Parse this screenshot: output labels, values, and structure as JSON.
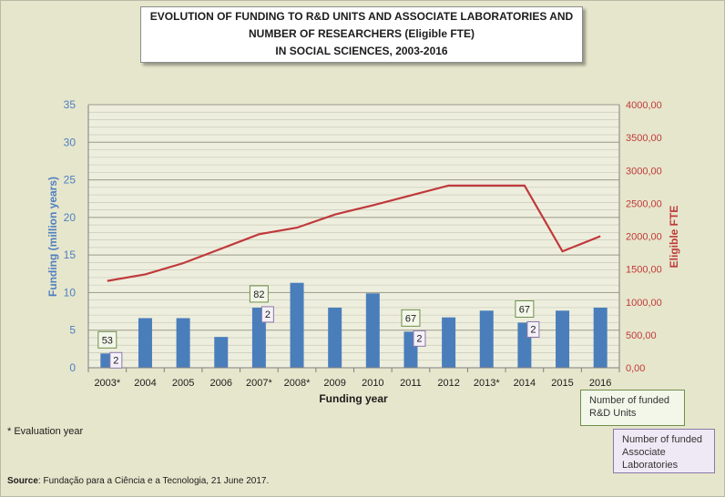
{
  "title": {
    "line1": "EVOLUTION OF FUNDING TO R&D UNITS AND ASSOCIATE LABORATORIES AND",
    "line2": "NUMBER OF RESEARCHERS (Eligible FTE)",
    "line3": "IN SOCIAL SCIENCES, 2003-2016"
  },
  "chart_data": {
    "type": "bar",
    "xlabel": "Funding year",
    "ylabel": "Funding (million years)",
    "y2label": "Eligible FTE",
    "categories": [
      "2003*",
      "2004",
      "2005",
      "2006",
      "2007*",
      "2008*",
      "2009",
      "2010",
      "2011",
      "2012",
      "2013*",
      "2014",
      "2015",
      "2016"
    ],
    "ylim": [
      0,
      35
    ],
    "y_ticks": [
      "0",
      "5",
      "10",
      "15",
      "20",
      "25",
      "30",
      "35"
    ],
    "y2lim": [
      0,
      4000
    ],
    "y2_ticks": [
      "0,00",
      "500,00",
      "1000,00",
      "1500,00",
      "2000,00",
      "2500,00",
      "3000,00",
      "3500,00",
      "4000,00"
    ],
    "grid": true,
    "series": [
      {
        "axis": "left",
        "type": "bar",
        "color": "#4a7ebb",
        "values": [
          1.9,
          6.6,
          6.6,
          4.1,
          8.0,
          11.3,
          8.0,
          9.9,
          4.8,
          6.7,
          7.6,
          6.0,
          7.6,
          8.0
        ]
      },
      {
        "axis": "right",
        "type": "line",
        "color": "#c0393b",
        "values": [
          1320,
          1420,
          1590,
          1810,
          2030,
          2130,
          2330,
          2470,
          2620,
          2770,
          2770,
          2770,
          1770,
          2000
        ]
      }
    ],
    "annotations": [
      {
        "category": "2003*",
        "units": "53",
        "labs": "2"
      },
      {
        "category": "2007*",
        "units": "82",
        "labs": "2"
      },
      {
        "category": "2011",
        "units": "67",
        "labs": "2"
      },
      {
        "category": "2014",
        "units": "67",
        "labs": "2"
      }
    ]
  },
  "legend": {
    "units": "Number of funded R&D Units",
    "labs": "Number of funded Associate Laboratories"
  },
  "colors": {
    "units_border": "#6e8f4a",
    "labs_border": "#8a78a8"
  },
  "footnote": "* Evaluation year",
  "source": {
    "label": "Source",
    "text": ": Fundação para a Ciência e a Tecnologia, 21 June 2017."
  }
}
